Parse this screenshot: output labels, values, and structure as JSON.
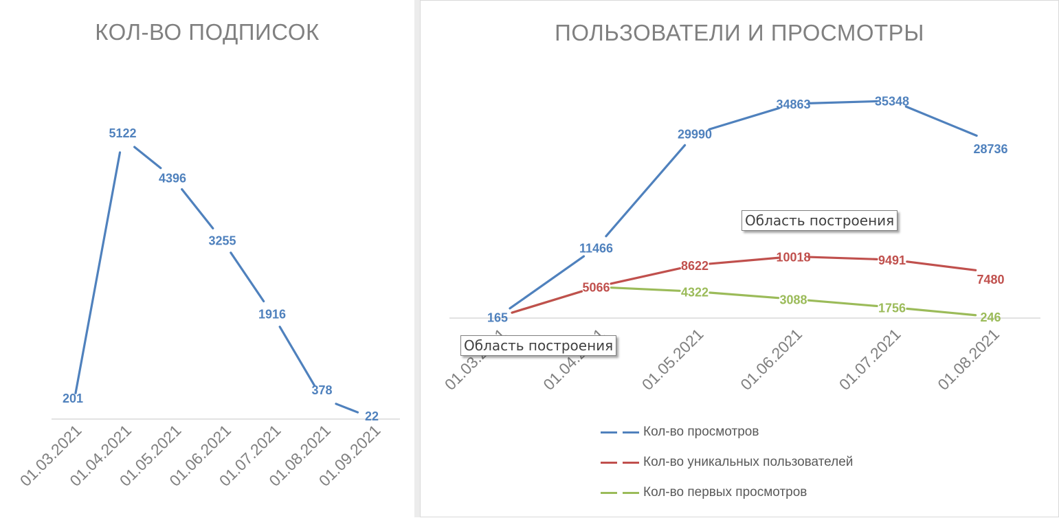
{
  "charts": {
    "left": {
      "title": "КОЛ-ВО ПОДПИСОК"
    },
    "right": {
      "title": "ПОЛЬЗОВАТЕЛИ И ПРОСМОТРЫ",
      "tooltip_plot_area_1": "Область построения",
      "tooltip_plot_area_2": "Область построения",
      "legend": [
        {
          "label": "Кол-во просмотров",
          "color": "#4f81bd"
        },
        {
          "label": "Кол-во уникальных пользователей",
          "color": "#c0504d"
        },
        {
          "label": "Кол-во первых просмотров",
          "color": "#9bbb59"
        }
      ]
    }
  },
  "chart_data": [
    {
      "type": "line",
      "title": "КОЛ-ВО ПОДПИСОК",
      "categories": [
        "01.03.2021",
        "01.04.2021",
        "01.05.2021",
        "01.06.2021",
        "01.07.2021",
        "01.08.2021",
        "01.09.2021"
      ],
      "series": [
        {
          "values": [
            201,
            5122,
            4396,
            3255,
            1916,
            378,
            22
          ],
          "color": "#4f81bd"
        }
      ],
      "ylim": [
        0,
        5500
      ],
      "grid": false,
      "data_labels": true
    },
    {
      "type": "line",
      "title": "ПОЛЬЗОВАТЕЛИ И ПРОСМОТРЫ",
      "categories": [
        "01.03.2021",
        "01.04.2021",
        "01.05.2021",
        "01.06.2021",
        "01.07.2021",
        "01.08.2021"
      ],
      "series": [
        {
          "name": "Кол-во просмотров",
          "values": [
            165,
            11466,
            29990,
            34863,
            35348,
            28736
          ],
          "color": "#4f81bd"
        },
        {
          "name": "Кол-во уникальных пользователей",
          "values": [
            165,
            5066,
            8622,
            10018,
            9491,
            7480
          ],
          "color": "#c0504d"
        },
        {
          "name": "Кол-во первых просмотров",
          "values": [
            165,
            5066,
            4322,
            3088,
            1756,
            246
          ],
          "color": "#9bbb59"
        }
      ],
      "ylim": [
        0,
        38000
      ],
      "grid": false,
      "legend_position": "bottom",
      "data_labels": true
    }
  ]
}
